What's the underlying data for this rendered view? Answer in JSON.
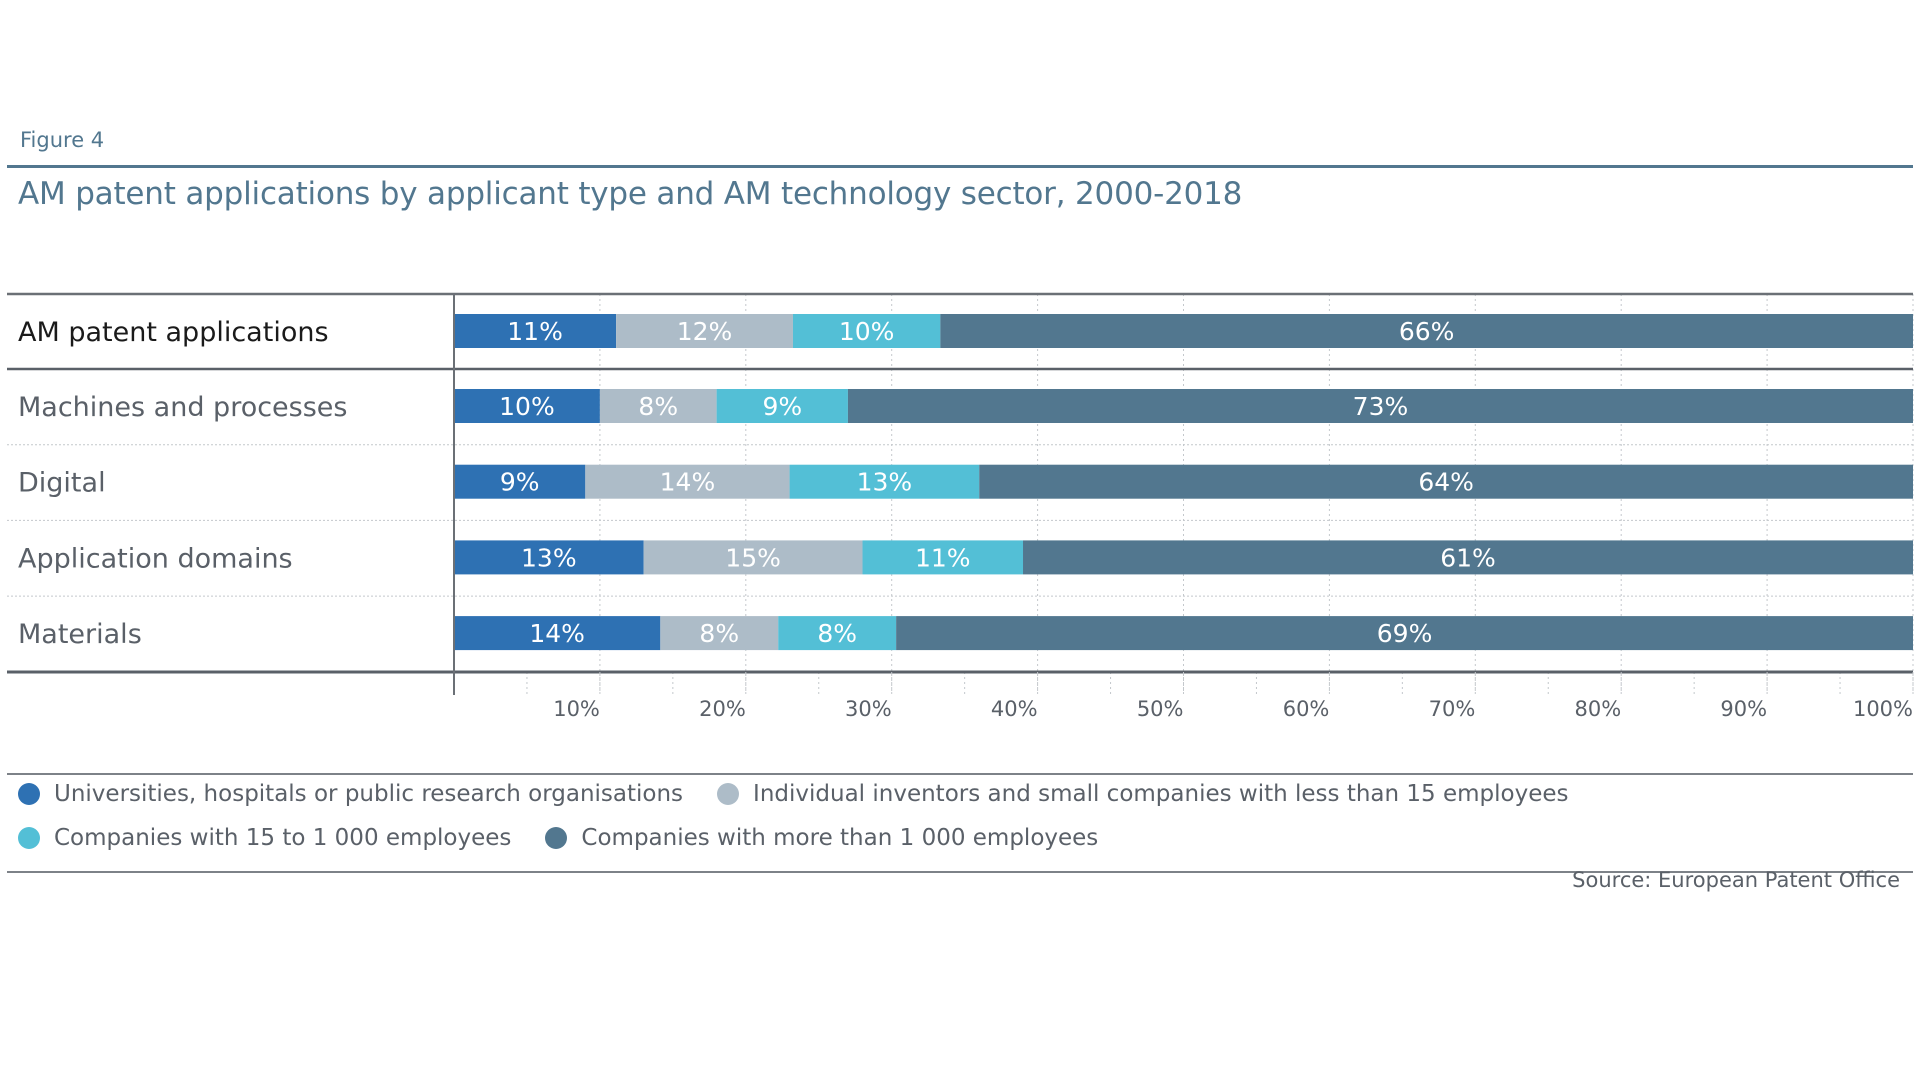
{
  "figure_label": "Figure 4",
  "title": "AM patent applications by applicant type and AM technology sector, 2000-2018",
  "source": "Source: European Patent Office",
  "legend": [
    {
      "label": "Universities, hospitals or public research organisations",
      "color": "#2e71b3"
    },
    {
      "label": "Individual inventors and small companies with less than 15 employees",
      "color": "#adbcc8"
    },
    {
      "label": "Companies with 15 to 1 000 employees",
      "color": "#53bfd6"
    },
    {
      "label": "Companies with more than 1 000 employees",
      "color": "#52778f"
    }
  ],
  "chart_data": {
    "type": "bar",
    "orientation": "horizontal",
    "stacked": true,
    "normalized": true,
    "title": "AM patent applications by applicant type and AM technology sector, 2000-2018",
    "xlabel": "",
    "ylabel": "",
    "xlim": [
      0,
      100
    ],
    "x_ticks": [
      "10%",
      "20%",
      "30%",
      "40%",
      "50%",
      "60%",
      "70%",
      "80%",
      "90%",
      "100%"
    ],
    "grid": true,
    "legend_position": "bottom",
    "categories": [
      "AM patent applications",
      "Machines and processes",
      "Digital",
      "Application domains",
      "Materials"
    ],
    "series": [
      {
        "name": "Universities, hospitals or public research organisations",
        "color": "#2e71b3",
        "values": [
          11,
          10,
          9,
          13,
          14
        ]
      },
      {
        "name": "Individual inventors and small companies with less than 15 employees",
        "color": "#adbcc8",
        "values": [
          12,
          8,
          14,
          15,
          8
        ]
      },
      {
        "name": "Companies with 15 to 1 000 employees",
        "color": "#53bfd6",
        "values": [
          10,
          9,
          13,
          11,
          8
        ]
      },
      {
        "name": "Companies with more than 1 000 employees",
        "color": "#52778f",
        "values": [
          66,
          73,
          64,
          61,
          69
        ]
      }
    ],
    "value_suffix": "%"
  }
}
